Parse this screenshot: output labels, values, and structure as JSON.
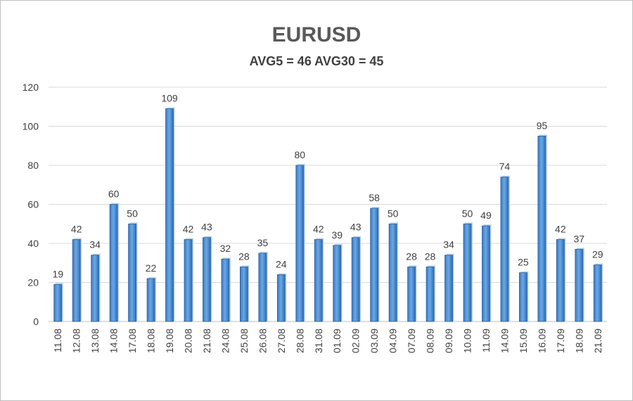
{
  "chart_data": {
    "type": "bar",
    "title": "EURUSD",
    "subtitle": "AVG5 = 46 AVG30 = 45",
    "xlabel": "",
    "ylabel": "",
    "ylim": [
      0,
      120
    ],
    "yticks": [
      "0",
      "20",
      "40",
      "60",
      "80",
      "100",
      "120"
    ],
    "grid": true,
    "legend": "none",
    "bar_color": "#4a8fd6",
    "categories": [
      "11.08",
      "12.08",
      "13.08",
      "14.08",
      "17.08",
      "18.08",
      "19.08",
      "20.08",
      "21.08",
      "24.08",
      "25.08",
      "26.08",
      "27.08",
      "28.08",
      "31.08",
      "01.09",
      "02.09",
      "03.09",
      "04.09",
      "07.09",
      "08.09",
      "09.09",
      "10.09",
      "11.09",
      "14.09",
      "15.09",
      "16.09",
      "17.09",
      "18.09",
      "21.09"
    ],
    "values": [
      19,
      42,
      34,
      60,
      50,
      22,
      109,
      42,
      43,
      32,
      28,
      35,
      24,
      80,
      42,
      39,
      43,
      58,
      50,
      28,
      28,
      34,
      50,
      49,
      74,
      25,
      95,
      42,
      37,
      29
    ]
  }
}
